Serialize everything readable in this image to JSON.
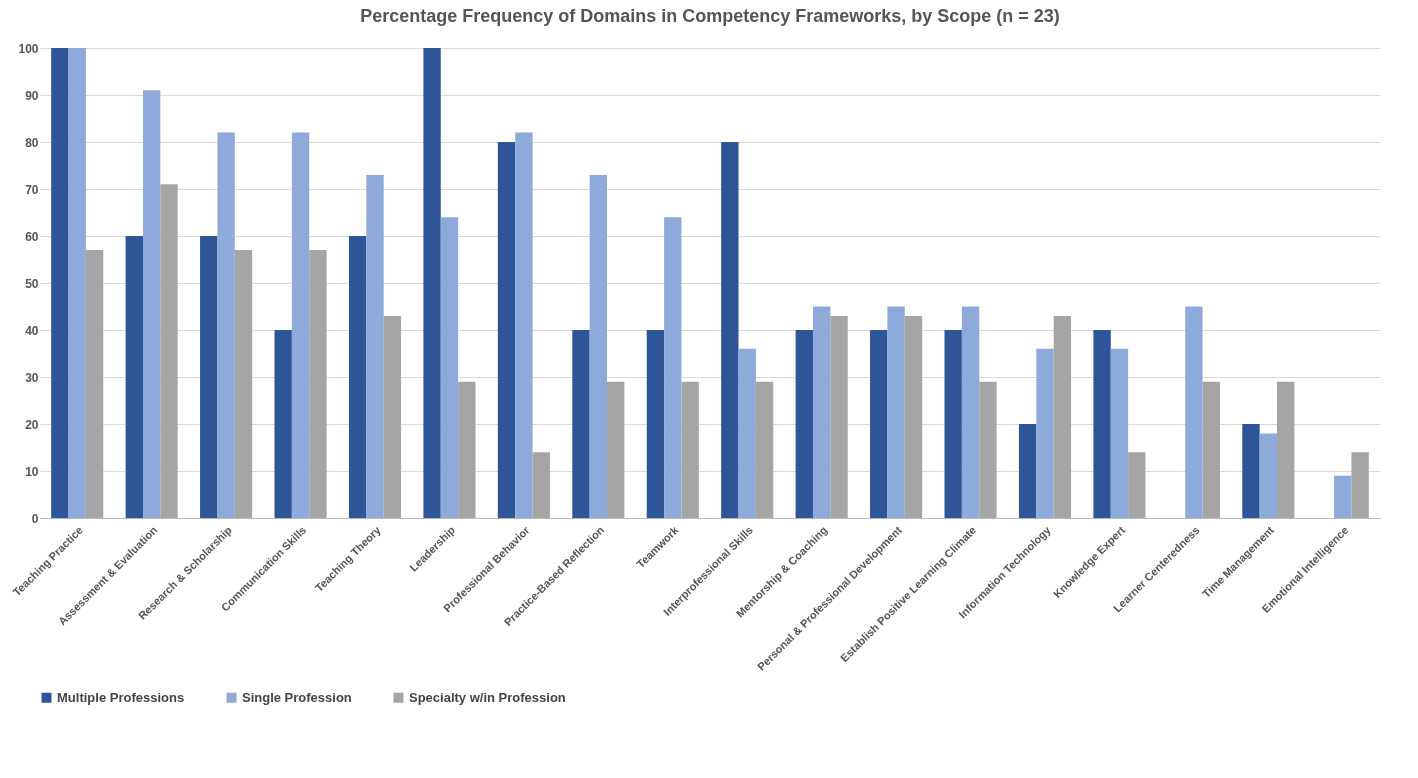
{
  "chart_data": {
    "type": "bar",
    "title": "Percentage Frequency of Domains in Competency Frameworks, by Scope (n = 23)",
    "categories": [
      "Teaching Practice",
      "Assessment & Evaluation",
      "Research & Scholarship",
      "Communication Skills",
      "Teaching Theory",
      "Leadership",
      "Professional Behavior",
      "Practice-Based Reflection",
      "Teamwork",
      "Interprofessional Skills",
      "Mentorship & Coaching",
      "Personal & Professional Development",
      "Establish Positive Learning Climate",
      "Information Technology",
      "Knowledge Expert",
      "Learner Centeredness",
      "Time Management",
      "Emotional Intelligence"
    ],
    "series": [
      {
        "name": "Multiple Professions",
        "color": "#2e5597",
        "values": [
          100,
          60,
          60,
          40,
          60,
          100,
          80,
          40,
          40,
          80,
          40,
          40,
          40,
          20,
          40,
          0,
          20,
          0
        ]
      },
      {
        "name": "Single Profession",
        "color": "#8eaadb",
        "values": [
          100,
          91,
          82,
          82,
          73,
          64,
          82,
          73,
          64,
          36,
          45,
          45,
          45,
          36,
          36,
          45,
          18,
          9
        ]
      },
      {
        "name": "Specialty w/in Profession",
        "color": "#a5a5a5",
        "values": [
          57,
          71,
          57,
          57,
          43,
          29,
          14,
          29,
          29,
          29,
          43,
          43,
          29,
          43,
          14,
          29,
          29,
          14
        ]
      }
    ],
    "ylim": [
      0,
      100
    ],
    "yticks": [
      0,
      10,
      20,
      30,
      40,
      50,
      60,
      70,
      80,
      90,
      100
    ],
    "grid": "y",
    "legend": "bottom"
  }
}
